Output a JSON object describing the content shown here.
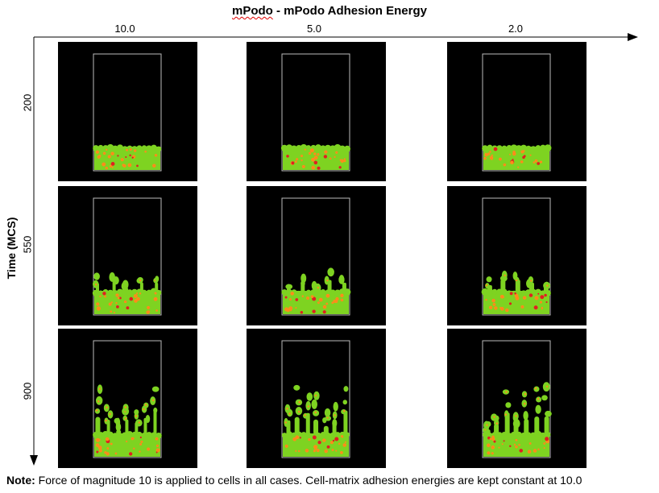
{
  "title": {
    "underlined_text": "mPodo",
    "rest_text": " - mPodo Adhesion Energy"
  },
  "columns": [
    "10.0",
    "5.0",
    "2.0"
  ],
  "rows": [
    "200",
    "550",
    "900"
  ],
  "y_axis_title": "Time (MCS)",
  "note": {
    "label": "Note:",
    "text": " Force of magnitude 10 is applied to cells in all cases. Cell-matrix adhesion energies are kept constant at 10.0"
  },
  "colors": {
    "panel_bg": "#000000",
    "cell_green": "#7ed321",
    "cell_orange": "#ff8c1a",
    "cell_red": "#e02020",
    "frame": "#bbbbbb"
  }
}
